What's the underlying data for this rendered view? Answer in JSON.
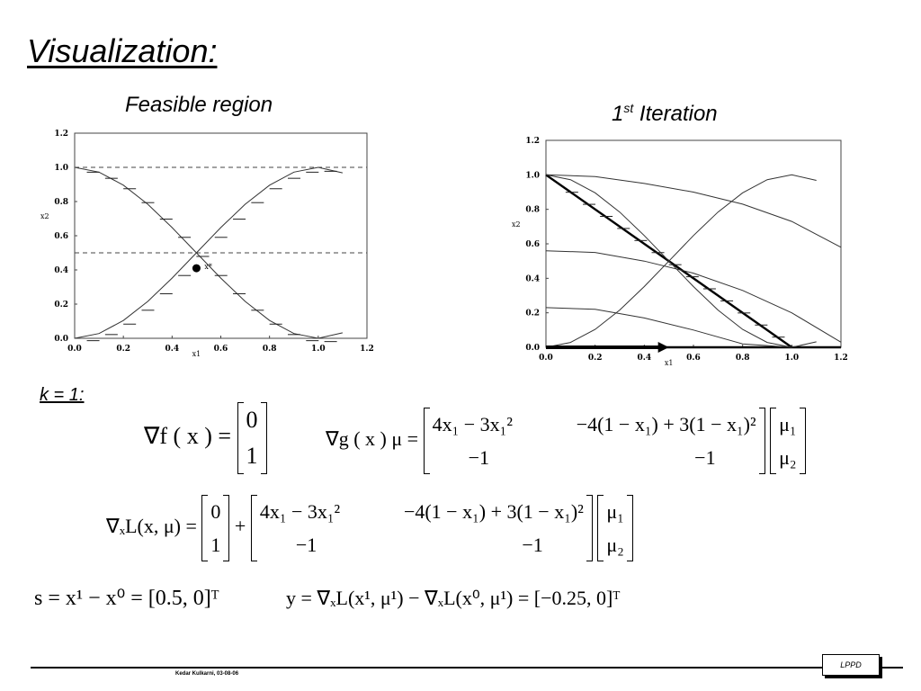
{
  "slide": {
    "title": "Visualization:",
    "footer_author": "Kedar Kulkarni, 03-08-06",
    "logo_text": "LPPD"
  },
  "left_chart_title": "Feasible region",
  "right_chart_title_pre": "1",
  "right_chart_title_sup": "st",
  "right_chart_title_post": " Iteration",
  "left_point_label": "x*",
  "k_label": "k = 1:",
  "equations": {
    "grad_f": {
      "lhs": "∇f ( x ) =",
      "vector": [
        "0",
        "1"
      ]
    },
    "grad_g": {
      "lhs": "∇g ( x ) μ =",
      "row1": [
        "4x₁ − 3x₁²",
        "−4(1 − x₁) + 3(1 − x₁)²"
      ],
      "row2": [
        "−1",
        "−1"
      ],
      "mu": [
        "μ₁",
        "μ₂"
      ]
    },
    "grad_L": {
      "lhs": "∇ₓL(x, μ) =",
      "vector": [
        "0",
        "1"
      ],
      "plus": "+",
      "row1": [
        "4x₁ − 3x₁²",
        "−4(1 − x₁) + 3(1 − x₁)²"
      ],
      "row2": [
        "−1",
        "−1"
      ],
      "mu": [
        "μ₁",
        "μ₂"
      ]
    },
    "s_def": "s = x¹ − x⁰ = [0.5, 0]ᵀ",
    "y_def": "y = ∇ₓL(x¹, μ¹) − ∇ₓL(x⁰, μ¹) = [−0.25, 0]ᵀ"
  },
  "chart_data": [
    {
      "type": "line",
      "title": "Feasible region",
      "xlabel": "x1",
      "ylabel": "x2",
      "xlim": [
        0,
        1.2
      ],
      "ylim": [
        0,
        1.2
      ],
      "xticks": [
        "0.0",
        "0.2",
        "0.4",
        "0.6",
        "0.8",
        "1.0",
        "1.2"
      ],
      "yticks": [
        "0.0",
        "0.2",
        "0.4",
        "0.6",
        "0.8",
        "1.0",
        "1.2"
      ],
      "series": [
        {
          "style": "solid",
          "x": [
            0,
            0.1,
            0.2,
            0.3,
            0.4,
            0.5,
            0.6,
            0.7,
            0.8,
            0.9,
            1.0,
            1.1
          ],
          "y": [
            0,
            0.028,
            0.104,
            0.216,
            0.352,
            0.5,
            0.648,
            0.784,
            0.896,
            0.972,
            1.0,
            0.968
          ]
        },
        {
          "style": "solid",
          "x": [
            0,
            0.1,
            0.2,
            0.3,
            0.4,
            0.5,
            0.6,
            0.7,
            0.8,
            0.9,
            1.0,
            1.1
          ],
          "y": [
            1.0,
            0.972,
            0.896,
            0.784,
            0.648,
            0.5,
            0.352,
            0.216,
            0.104,
            0.028,
            0,
            0.032
          ]
        },
        {
          "style": "dashed",
          "x": [
            0,
            1.2
          ],
          "y": [
            1.0,
            1.0
          ]
        },
        {
          "style": "dashed",
          "x": [
            0,
            1.2
          ],
          "y": [
            0.5,
            0.5
          ]
        }
      ],
      "points": [
        {
          "x": 0.5,
          "y": 0.41,
          "label": "x*"
        }
      ]
    },
    {
      "type": "line",
      "title": "1st Iteration",
      "xlabel": "x1",
      "ylabel": "x2",
      "xlim": [
        0,
        1.2
      ],
      "ylim": [
        0,
        1.2
      ],
      "xticks": [
        "0.0",
        "0.2",
        "0.4",
        "0.6",
        "0.8",
        "1.0",
        "1.2"
      ],
      "yticks": [
        "0.0",
        "0.2",
        "0.4",
        "0.6",
        "0.8",
        "1.0",
        "1.2"
      ],
      "series": [
        {
          "style": "bold",
          "x": [
            0,
            1.0
          ],
          "y": [
            1.0,
            0
          ]
        },
        {
          "style": "bold",
          "x": [
            0,
            1.2
          ],
          "y": [
            0,
            0
          ]
        },
        {
          "style": "solid",
          "x": [
            0,
            0.2,
            0.4,
            0.6,
            0.8,
            1.0,
            1.2
          ],
          "y": [
            1.0,
            0.99,
            0.95,
            0.9,
            0.83,
            0.73,
            0.58
          ]
        },
        {
          "style": "solid",
          "x": [
            0,
            0.2,
            0.4,
            0.6,
            0.8,
            1.0,
            1.2
          ],
          "y": [
            0.56,
            0.55,
            0.5,
            0.43,
            0.33,
            0.2,
            0.03
          ]
        },
        {
          "style": "solid",
          "x": [
            0,
            0.2,
            0.4,
            0.6,
            0.8,
            1.0
          ],
          "y": [
            0.23,
            0.22,
            0.17,
            0.1,
            0.02,
            0.0
          ]
        },
        {
          "style": "solid",
          "x": [
            0,
            0.1,
            0.2,
            0.3,
            0.4,
            0.5,
            0.6,
            0.7,
            0.8,
            0.9,
            1.0,
            1.1
          ],
          "y": [
            0,
            0.028,
            0.104,
            0.216,
            0.352,
            0.5,
            0.648,
            0.784,
            0.896,
            0.972,
            1.0,
            0.968
          ]
        },
        {
          "style": "solid",
          "x": [
            0,
            0.1,
            0.2,
            0.3,
            0.4,
            0.5,
            0.6,
            0.7,
            0.8,
            0.9,
            1.0,
            1.1
          ],
          "y": [
            1.0,
            0.972,
            0.896,
            0.784,
            0.648,
            0.5,
            0.352,
            0.216,
            0.104,
            0.028,
            0,
            0.032
          ]
        }
      ],
      "arrows": [
        {
          "from": [
            0,
            0
          ],
          "to": [
            0.5,
            0
          ]
        }
      ]
    }
  ]
}
